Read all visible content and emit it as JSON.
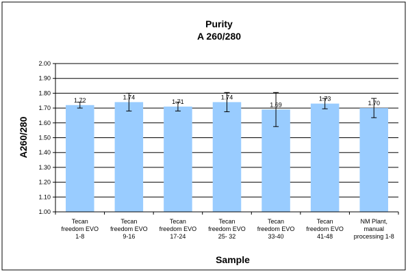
{
  "chart_data": {
    "type": "bar",
    "title": [
      "Purity",
      "A 260/280"
    ],
    "xlabel": "Sample",
    "ylabel": "A260/280",
    "ylim": [
      1.0,
      2.0
    ],
    "ytick_step": 0.1,
    "yticks": [
      "1.00",
      "1.10",
      "1.20",
      "1.30",
      "1.40",
      "1.50",
      "1.60",
      "1.70",
      "1.80",
      "1.90",
      "2.00"
    ],
    "grid": true,
    "legend": "none",
    "bar_color": "#99ccff",
    "categories": [
      [
        "Tecan",
        "freedom EVO",
        "1-8"
      ],
      [
        "Tecan",
        "freedom EVO",
        "9-16"
      ],
      [
        "Tecan",
        "freedom EVO",
        "17-24"
      ],
      [
        "Tecan",
        "freedom EVO",
        "25- 32"
      ],
      [
        "Tecan",
        "freedom EVO",
        "33-40"
      ],
      [
        "Tecan",
        "freedom EVO",
        "41-48"
      ],
      [
        "NM Plant,",
        "manual",
        "processing 1-8"
      ]
    ],
    "values": [
      1.72,
      1.74,
      1.71,
      1.74,
      1.69,
      1.73,
      1.7
    ],
    "value_labels": [
      "1.72",
      "1.74",
      "1.71",
      "1.74",
      "1.69",
      "1.73",
      "1.70"
    ],
    "error": [
      0.02,
      0.06,
      0.03,
      0.065,
      0.115,
      0.035,
      0.065
    ]
  }
}
